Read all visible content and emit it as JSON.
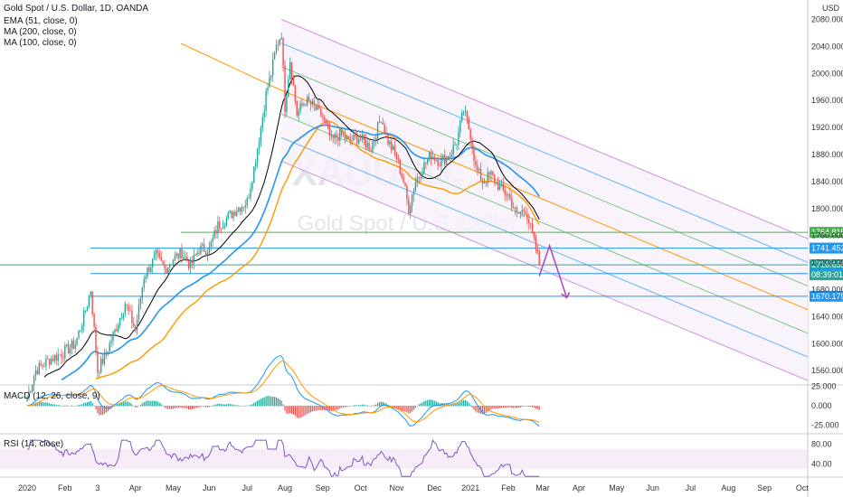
{
  "header": {
    "title": "Gold Spot / U.S. Dollar, 1D, OANDA",
    "currency": "USD",
    "indicators": [
      "EMA (51, close, 0)",
      "MA (200, close, 0)",
      "MA (100, close, 0)"
    ]
  },
  "watermark": {
    "symbol": "XAUUSD, 1D",
    "name": "Gold Spot / U.S. Dollar"
  },
  "panes": {
    "macd_label": "MACD (12, 26, close, 9)",
    "rsi_label": "RSI (14, close)"
  },
  "colors": {
    "up": "#26a69a",
    "down": "#ef5350",
    "ema": "#2196f3",
    "ma200": "#ff9800",
    "ma100": "#000000",
    "channel_outer": "#ce93d8",
    "channel_mid": "#64b5f6",
    "channel_inner": "#81c784",
    "median": "#ff9800",
    "macd_line": "#2196f3",
    "signal_line": "#ff9800",
    "rsi_line": "#7e57c2"
  },
  "chart_data": {
    "type": "candlestick",
    "price_axis": {
      "ticks": [
        2080,
        2040,
        2000,
        1960,
        1920,
        1880,
        1840,
        1800,
        1760,
        1720,
        1680,
        1640,
        1600,
        1560
      ],
      "labels": [
        "2080.000",
        "2040.000",
        "2000.000",
        "1960.000",
        "1920.000",
        "1880.000",
        "1840.000",
        "1800.000",
        "1760.000",
        "1720.000",
        "1680.000",
        "1640.000",
        "1600.000",
        "1560.000"
      ]
    },
    "time_axis": [
      "2020",
      "Feb",
      "3",
      "Apr",
      "May",
      "Jun",
      "Jul",
      "Aug",
      "Sep",
      "Oct",
      "Nov",
      "Dec",
      "2021",
      "Feb",
      "Mar",
      "Apr",
      "May",
      "Jun",
      "Jul",
      "Aug",
      "Sep",
      "Oct"
    ],
    "time_tick_index": [
      0,
      22,
      41,
      63,
      85,
      106,
      128,
      150,
      172,
      194,
      215,
      237,
      258,
      280,
      300,
      321,
      343,
      364,
      386,
      408,
      429,
      451
    ],
    "price_levels": [
      {
        "value": 1764.815,
        "label": "1764.815",
        "color": "#4caf50"
      },
      {
        "value": 1741.452,
        "label": "1741.452",
        "color": "#2196f3"
      },
      {
        "value": 1716.655,
        "label": "1716.655",
        "color": "#26a69a"
      },
      {
        "value": 1703.788,
        "label": "1703.788",
        "color": "#2196f3"
      },
      {
        "value": 1670.179,
        "label": "1670.179",
        "color": "#2196f3"
      }
    ],
    "countdown": "08:39:01",
    "macd": {
      "ticks": [
        "25.000",
        "0.000",
        "-25.000"
      ],
      "tick_values": [
        25,
        0,
        -25
      ]
    },
    "rsi": {
      "ticks": [
        "80.00",
        "40.00"
      ],
      "tick_values": [
        80,
        40
      ],
      "band": [
        30,
        70
      ]
    },
    "anchors": [
      [
        0,
        1520
      ],
      [
        5,
        1560
      ],
      [
        12,
        1575
      ],
      [
        20,
        1585
      ],
      [
        28,
        1600
      ],
      [
        33,
        1640
      ],
      [
        37,
        1680
      ],
      [
        41,
        1560
      ],
      [
        45,
        1580
      ],
      [
        52,
        1625
      ],
      [
        57,
        1660
      ],
      [
        63,
        1620
      ],
      [
        68,
        1700
      ],
      [
        75,
        1730
      ],
      [
        80,
        1710
      ],
      [
        85,
        1725
      ],
      [
        90,
        1735
      ],
      [
        95,
        1715
      ],
      [
        100,
        1740
      ],
      [
        106,
        1740
      ],
      [
        111,
        1775
      ],
      [
        116,
        1785
      ],
      [
        122,
        1800
      ],
      [
        128,
        1810
      ],
      [
        132,
        1860
      ],
      [
        136,
        1920
      ],
      [
        139,
        1970
      ],
      [
        142,
        2000
      ],
      [
        145,
        2040
      ],
      [
        148,
        2060
      ],
      [
        150,
        1950
      ],
      [
        153,
        2020
      ],
      [
        157,
        1940
      ],
      [
        162,
        1960
      ],
      [
        167,
        1950
      ],
      [
        172,
        1935
      ],
      [
        177,
        1900
      ],
      [
        182,
        1910
      ],
      [
        187,
        1900
      ],
      [
        193,
        1905
      ],
      [
        200,
        1890
      ],
      [
        206,
        1935
      ],
      [
        210,
        1900
      ],
      [
        215,
        1875
      ],
      [
        219,
        1840
      ],
      [
        222,
        1800
      ],
      [
        226,
        1840
      ],
      [
        230,
        1860
      ],
      [
        235,
        1880
      ],
      [
        240,
        1870
      ],
      [
        246,
        1880
      ],
      [
        250,
        1900
      ],
      [
        254,
        1945
      ],
      [
        258,
        1910
      ],
      [
        261,
        1860
      ],
      [
        265,
        1840
      ],
      [
        270,
        1850
      ],
      [
        275,
        1830
      ],
      [
        280,
        1820
      ],
      [
        285,
        1790
      ],
      [
        290,
        1800
      ],
      [
        294,
        1760
      ],
      [
        297,
        1730
      ],
      [
        298,
        1716
      ]
    ]
  }
}
